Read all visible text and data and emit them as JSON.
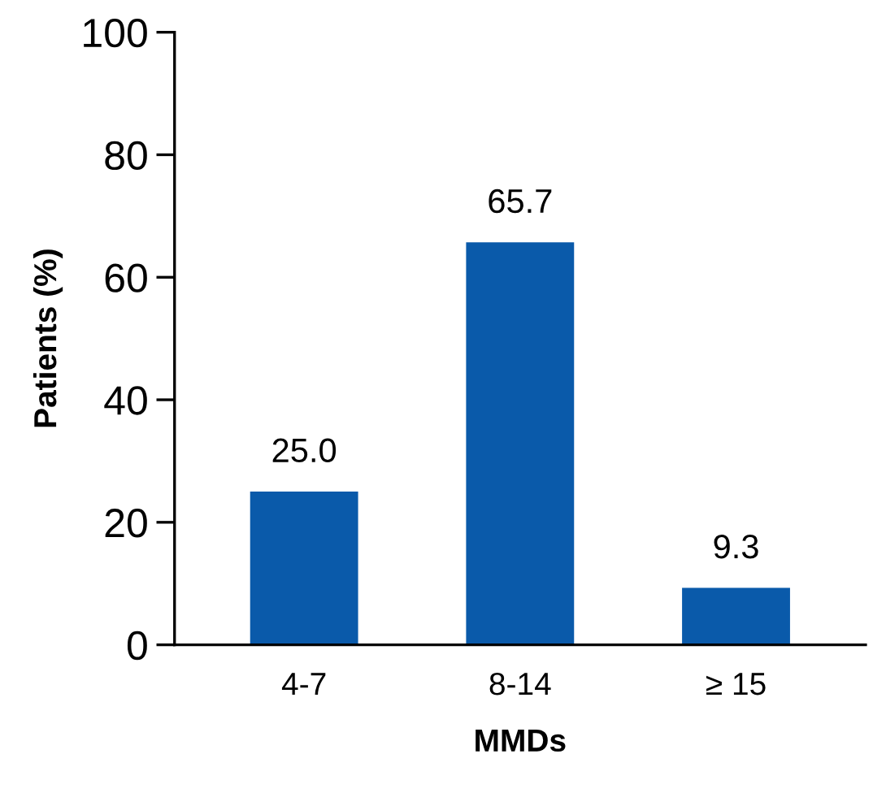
{
  "chart_data": {
    "type": "bar",
    "xlabel": "MMDs",
    "ylabel": "Patients (%)",
    "categories": [
      "4-7",
      "8-14",
      "≥ 15"
    ],
    "values": [
      25.0,
      65.7,
      9.3
    ],
    "value_labels": [
      "25.0",
      "65.7",
      "9.3"
    ],
    "color": "#0a5aaa",
    "ylim": [
      0,
      100
    ],
    "yticks": [
      0,
      20,
      40,
      60,
      80,
      100
    ],
    "grid": false,
    "legend": false
  }
}
